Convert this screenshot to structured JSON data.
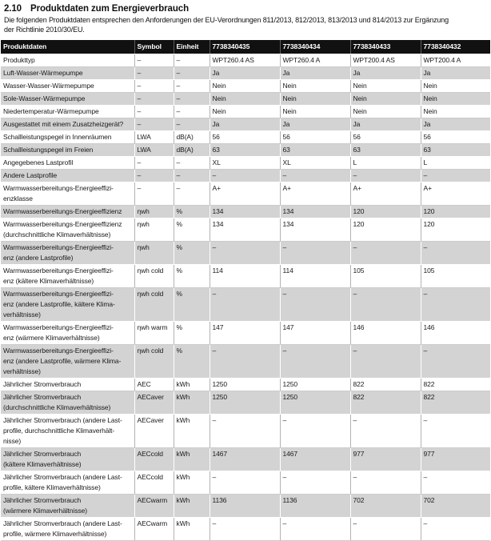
{
  "page": {
    "section_number": "2.10",
    "title": "Produktdaten zum Energieverbrauch",
    "intro": "Die folgenden Produktdaten entsprechen den Anforderungen der EU-Verordnungen 811/2013, 812/2013, 813/2013 und 814/2013 zur Ergänzung\nder Richtlinie 2010/30/EU."
  },
  "colors": {
    "header_bg": "#111111",
    "header_text": "#ffffff",
    "stripe_bg": "#d3d3d3"
  },
  "table": {
    "columns": [
      "Produktdaten",
      "Symbol",
      "Einheit",
      "7738340435",
      "7738340434",
      "7738340433",
      "7738340432"
    ],
    "rows": [
      {
        "label": "Produkttyp",
        "symbol": "–",
        "unit": "–",
        "values": [
          "WPT260.4 AS",
          "WPT260.4 A",
          "WPT200.4 AS",
          "WPT200.4 A"
        ]
      },
      {
        "label": "Luft-Wasser-Wärmepumpe",
        "symbol": "–",
        "unit": "–",
        "values": [
          "Ja",
          "Ja",
          "Ja",
          "Ja"
        ]
      },
      {
        "label": "Wasser-Wasser-Wärmepumpe",
        "symbol": "–",
        "unit": "–",
        "values": [
          "Nein",
          "Nein",
          "Nein",
          "Nein"
        ]
      },
      {
        "label": "Sole-Wasser-Wärmepumpe",
        "symbol": "–",
        "unit": "–",
        "values": [
          "Nein",
          "Nein",
          "Nein",
          "Nein"
        ]
      },
      {
        "label": "Niedertemperatur-Wärmepumpe",
        "symbol": "–",
        "unit": "–",
        "values": [
          "Nein",
          "Nein",
          "Nein",
          "Nein"
        ]
      },
      {
        "label": "Ausgestattet mit einem Zusatzheizgerät?",
        "symbol": "–",
        "unit": "–",
        "values": [
          "Ja",
          "Ja",
          "Ja",
          "Ja"
        ]
      },
      {
        "label": "Schallleistungspegel in Innenräumen",
        "symbol": "LWA",
        "unit": "dB(A)",
        "values": [
          "56",
          "56",
          "56",
          "56"
        ]
      },
      {
        "label": "Schallleistungspegel im Freien",
        "symbol": "LWA",
        "unit": "dB(A)",
        "values": [
          "63",
          "63",
          "63",
          "63"
        ]
      },
      {
        "label": "Angegebenes Lastprofil",
        "symbol": "–",
        "unit": "–",
        "values": [
          "XL",
          "XL",
          "L",
          "L"
        ]
      },
      {
        "label": "Andere Lastprofile",
        "symbol": "–",
        "unit": "–",
        "values": [
          "–",
          "–",
          "–",
          "–"
        ]
      },
      {
        "label": "Warmwasserbereitungs-Energieeffizi-\nenzklasse",
        "symbol": "–",
        "unit": "–",
        "values": [
          "A+",
          "A+",
          "A+",
          "A+"
        ]
      },
      {
        "label": "Warmwasserbereitungs-Energieeffizienz",
        "symbol": "ηwh",
        "unit": "%",
        "values": [
          "134",
          "134",
          "120",
          "120"
        ]
      },
      {
        "label": "Warmwasserbereitungs-Energieeffizienz\n(durchschnittliche Klimaverhältnisse)",
        "symbol": "ηwh",
        "unit": "%",
        "values": [
          "134",
          "134",
          "120",
          "120"
        ]
      },
      {
        "label": "Warmwasserbereitungs-Energieeffizi-\nenz (andere Lastprofile)",
        "symbol": "ηwh",
        "unit": "%",
        "values": [
          "–",
          "–",
          "–",
          "–"
        ]
      },
      {
        "label": "Warmwasserbereitungs-Energieeffizi-\nenz (kältere Klimaverhältnisse)",
        "symbol": "ηwh cold",
        "unit": "%",
        "values": [
          "114",
          "114",
          "105",
          "105"
        ]
      },
      {
        "label": "Warmwasserbereitungs-Energieeffizi-\nenz (andere Lastprofile, kältere Klima-\nverhältnisse)",
        "symbol": "ηwh cold",
        "unit": "%",
        "values": [
          "–",
          "–",
          "–",
          "–"
        ]
      },
      {
        "label": "Warmwasserbereitungs-Energieeffizi-\nenz (wärmere Klimaverhältnisse)",
        "symbol": "ηwh warm",
        "unit": "%",
        "values": [
          "147",
          "147",
          "146",
          "146"
        ]
      },
      {
        "label": "Warmwasserbereitungs-Energieeffizi-\nenz (andere Lastprofile, wärmere Klima-\nverhältnisse)",
        "symbol": "ηwh cold",
        "unit": "%",
        "values": [
          "–",
          "–",
          "–",
          "–"
        ]
      },
      {
        "label": "Jährlicher Stromverbrauch",
        "symbol": "AEC",
        "unit": "kWh",
        "values": [
          "1250",
          "1250",
          "822",
          "822"
        ]
      },
      {
        "label": "Jährlicher Stromverbrauch\n(durchschnittliche Klimaverhältnisse)",
        "symbol": "AECaver",
        "unit": "kWh",
        "values": [
          "1250",
          "1250",
          "822",
          "822"
        ]
      },
      {
        "label": "Jährlicher Stromverbrauch (andere Last-\nprofile, durchschnittliche Klimaverhält-\nnisse)",
        "symbol": "AECaver",
        "unit": "kWh",
        "values": [
          "–",
          "–",
          "–",
          "–"
        ]
      },
      {
        "label": "Jährlicher Stromverbrauch\n(kältere Klimaverhältnisse)",
        "symbol": "AECcold",
        "unit": "kWh",
        "values": [
          "1467",
          "1467",
          "977",
          "977"
        ]
      },
      {
        "label": "Jährlicher Stromverbrauch (andere Last-\nprofile, kältere Klimaverhältnisse)",
        "symbol": "AECcold",
        "unit": "kWh",
        "values": [
          "–",
          "–",
          "–",
          "–"
        ]
      },
      {
        "label": "Jährlicher Stromverbrauch\n(wärmere Klimaverhältnisse)",
        "symbol": "AECwarm",
        "unit": "kWh",
        "values": [
          "1136",
          "1136",
          "702",
          "702"
        ]
      },
      {
        "label": "Jährlicher Stromverbrauch (andere Last-\nprofile, wärmere Klimaverhältnisse)",
        "symbol": "AECwarm",
        "unit": "kWh",
        "values": [
          "–",
          "–",
          "–",
          "–"
        ]
      }
    ]
  }
}
